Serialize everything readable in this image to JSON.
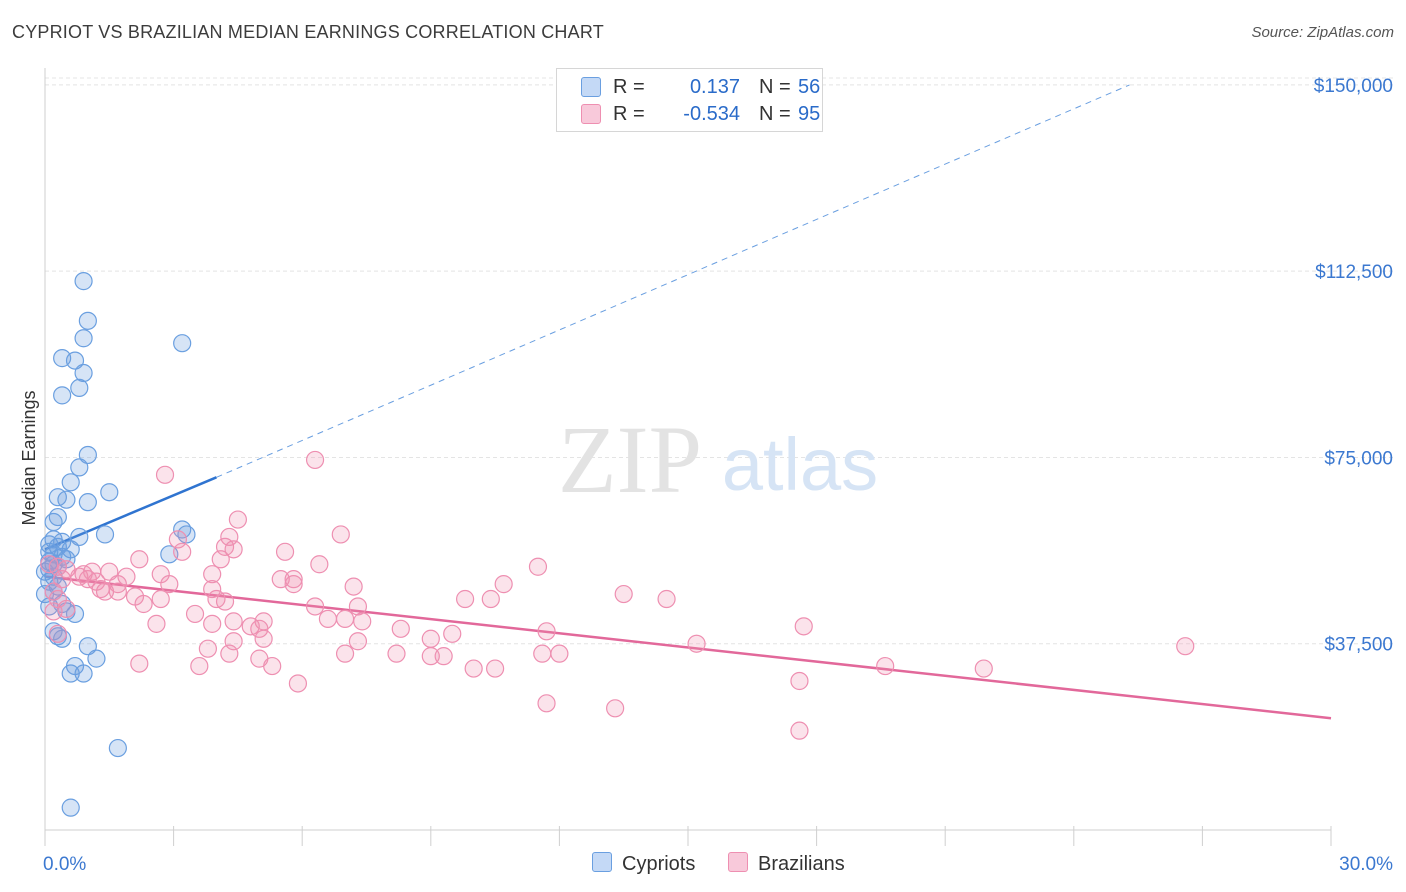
{
  "title": "CYPRIOT VS BRAZILIAN MEDIAN EARNINGS CORRELATION CHART",
  "source": "Source: ZipAtlas.com",
  "watermark": {
    "zip": "ZIP",
    "atlas": "atlas"
  },
  "legend": {
    "rows": [
      {
        "r_label": "R =",
        "r_value": "0.137",
        "n_label": "N =",
        "n_value": "56",
        "color": "#6a9fe0"
      },
      {
        "r_label": "R =",
        "r_value": "-0.534",
        "n_label": "N =",
        "n_value": "95",
        "color": "#ee8fb1"
      }
    ],
    "series": [
      {
        "name": "Cypriots",
        "color": "#6a9fe0"
      },
      {
        "name": "Brazilians",
        "color": "#ee8fb1"
      }
    ]
  },
  "chart_data": {
    "type": "scatter",
    "title": "CYPRIOT VS BRAZILIAN MEDIAN EARNINGS CORRELATION CHART",
    "xlabel": "",
    "ylabel": "Median Earnings",
    "xlim": [
      0,
      30
    ],
    "ylim": [
      0,
      153000
    ],
    "x_tick_labels": [
      "0.0%",
      "30.0%"
    ],
    "y_ticks": [
      37500,
      75000,
      112500,
      150000
    ],
    "y_tick_labels": [
      "$37,500",
      "$75,000",
      "$112,500",
      "$150,000"
    ],
    "grid": true,
    "series": [
      {
        "name": "Cypriots",
        "color": "#6a9fe0",
        "trend": {
          "x": [
            0,
            4.0
          ],
          "y": [
            56500,
            71000
          ],
          "extended_to": [
            25.3,
            150000
          ]
        },
        "points": [
          [
            0.9,
            110500
          ],
          [
            1.0,
            102500
          ],
          [
            0.9,
            99000
          ],
          [
            0.4,
            95000
          ],
          [
            0.7,
            94500
          ],
          [
            0.9,
            92000
          ],
          [
            0.8,
            89000
          ],
          [
            0.4,
            87500
          ],
          [
            3.2,
            98000
          ],
          [
            1.0,
            75500
          ],
          [
            0.8,
            73000
          ],
          [
            0.6,
            70000
          ],
          [
            1.5,
            68000
          ],
          [
            0.3,
            67000
          ],
          [
            0.5,
            66500
          ],
          [
            1.0,
            66000
          ],
          [
            0.3,
            63000
          ],
          [
            0.2,
            62000
          ],
          [
            3.2,
            60500
          ],
          [
            3.3,
            59500
          ],
          [
            1.4,
            59500
          ],
          [
            0.8,
            59000
          ],
          [
            0.2,
            58500
          ],
          [
            0.4,
            58000
          ],
          [
            0.1,
            57500
          ],
          [
            0.3,
            57000
          ],
          [
            0.6,
            56500
          ],
          [
            0.1,
            56000
          ],
          [
            0.2,
            55500
          ],
          [
            0.4,
            55000
          ],
          [
            0.5,
            54500
          ],
          [
            0.1,
            54000
          ],
          [
            2.9,
            55500
          ],
          [
            0.2,
            53500
          ],
          [
            0.3,
            53000
          ],
          [
            0.1,
            52500
          ],
          [
            0.0,
            52000
          ],
          [
            0.2,
            51000
          ],
          [
            0.1,
            50000
          ],
          [
            0.3,
            49000
          ],
          [
            0.2,
            48000
          ],
          [
            0.0,
            47500
          ],
          [
            0.4,
            45500
          ],
          [
            0.1,
            45000
          ],
          [
            0.5,
            44000
          ],
          [
            0.7,
            43500
          ],
          [
            0.2,
            40000
          ],
          [
            0.4,
            38500
          ],
          [
            1.0,
            37000
          ],
          [
            1.2,
            34500
          ],
          [
            0.7,
            33000
          ],
          [
            0.6,
            31500
          ],
          [
            0.9,
            31500
          ],
          [
            1.7,
            16500
          ],
          [
            0.6,
            4500
          ],
          [
            0.3,
            39000
          ]
        ]
      },
      {
        "name": "Brazilians",
        "color": "#ee8fb1",
        "trend": {
          "x": [
            0,
            30
          ],
          "y": [
            51000,
            22500
          ]
        },
        "points": [
          [
            2.8,
            71500
          ],
          [
            6.3,
            74500
          ],
          [
            4.5,
            62500
          ],
          [
            6.9,
            59500
          ],
          [
            4.3,
            59000
          ],
          [
            3.1,
            58500
          ],
          [
            4.2,
            57000
          ],
          [
            3.2,
            56000
          ],
          [
            4.4,
            56500
          ],
          [
            5.6,
            56000
          ],
          [
            4.1,
            54500
          ],
          [
            2.2,
            54500
          ],
          [
            6.4,
            53500
          ],
          [
            11.5,
            53000
          ],
          [
            0.3,
            53000
          ],
          [
            0.5,
            52500
          ],
          [
            1.1,
            52000
          ],
          [
            1.5,
            52000
          ],
          [
            2.7,
            51500
          ],
          [
            3.9,
            51500
          ],
          [
            0.8,
            51000
          ],
          [
            1.0,
            50500
          ],
          [
            1.9,
            51000
          ],
          [
            5.5,
            50500
          ],
          [
            5.8,
            50500
          ],
          [
            7.2,
            49000
          ],
          [
            1.2,
            50000
          ],
          [
            1.7,
            49500
          ],
          [
            2.9,
            49500
          ],
          [
            5.8,
            49500
          ],
          [
            10.7,
            49500
          ],
          [
            3.9,
            48500
          ],
          [
            1.4,
            48000
          ],
          [
            1.7,
            48000
          ],
          [
            2.1,
            47000
          ],
          [
            2.7,
            46500
          ],
          [
            4.0,
            46500
          ],
          [
            4.2,
            46000
          ],
          [
            10.4,
            46500
          ],
          [
            9.8,
            46500
          ],
          [
            13.5,
            47500
          ],
          [
            14.5,
            46500
          ],
          [
            2.3,
            45500
          ],
          [
            6.3,
            45000
          ],
          [
            7.3,
            45000
          ],
          [
            0.5,
            44500
          ],
          [
            0.2,
            44000
          ],
          [
            3.5,
            43500
          ],
          [
            4.4,
            42000
          ],
          [
            6.6,
            42500
          ],
          [
            7.0,
            42500
          ],
          [
            7.4,
            42000
          ],
          [
            2.6,
            41500
          ],
          [
            3.9,
            41500
          ],
          [
            5.1,
            42000
          ],
          [
            4.8,
            41000
          ],
          [
            5.0,
            40500
          ],
          [
            8.3,
            40500
          ],
          [
            9.5,
            39500
          ],
          [
            11.7,
            40000
          ],
          [
            0.3,
            39500
          ],
          [
            17.7,
            41000
          ],
          [
            4.4,
            38000
          ],
          [
            5.1,
            38500
          ],
          [
            7.3,
            38000
          ],
          [
            9.0,
            38500
          ],
          [
            15.2,
            37500
          ],
          [
            3.8,
            36500
          ],
          [
            4.3,
            35500
          ],
          [
            7.0,
            35500
          ],
          [
            8.2,
            35500
          ],
          [
            9.0,
            35000
          ],
          [
            9.3,
            35000
          ],
          [
            11.6,
            35500
          ],
          [
            12.0,
            35500
          ],
          [
            5.0,
            34500
          ],
          [
            2.2,
            33500
          ],
          [
            3.6,
            33000
          ],
          [
            5.3,
            33000
          ],
          [
            10.5,
            32500
          ],
          [
            10.0,
            32500
          ],
          [
            19.6,
            33000
          ],
          [
            21.9,
            32500
          ],
          [
            26.6,
            37000
          ],
          [
            5.9,
            29500
          ],
          [
            17.6,
            30000
          ],
          [
            11.7,
            25500
          ],
          [
            13.3,
            24500
          ],
          [
            17.6,
            20000
          ],
          [
            0.1,
            53500
          ],
          [
            0.4,
            50500
          ],
          [
            0.9,
            51500
          ],
          [
            1.3,
            48500
          ],
          [
            0.2,
            48000
          ],
          [
            0.3,
            46500
          ]
        ]
      }
    ]
  }
}
